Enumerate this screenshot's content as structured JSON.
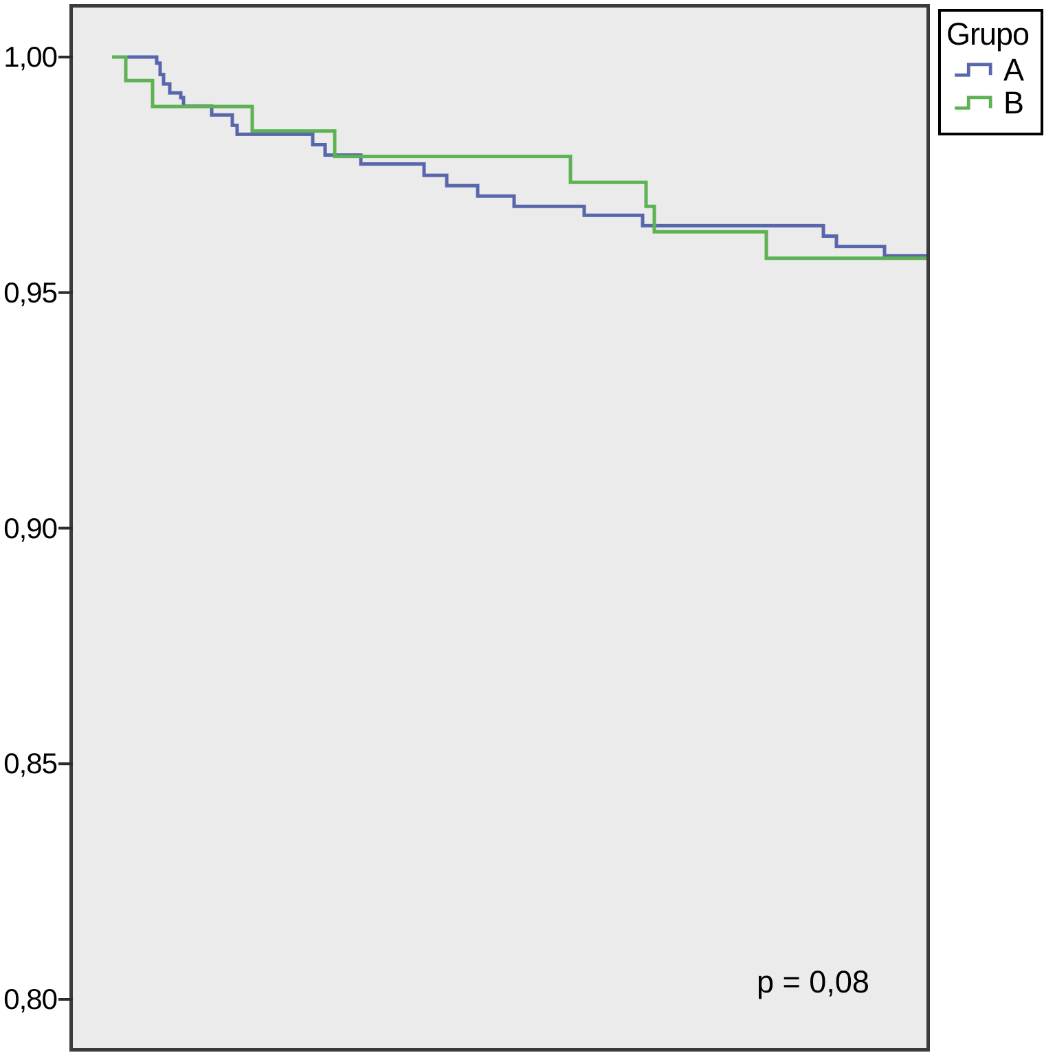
{
  "figure": {
    "p_value_label": "p = 0,08"
  },
  "legend": {
    "title": "Grupo",
    "entries": [
      {
        "label": "A"
      },
      {
        "label": "B"
      }
    ]
  },
  "colors": {
    "series_a": "#5866ac",
    "series_b": "#5db253",
    "plot_background": "#ebebeb",
    "frame": "#3b3b3b",
    "tick": "#2d2d2d"
  },
  "chart_data": {
    "type": "line",
    "subtype": "kaplan-meier-step",
    "title": "",
    "xlabel": "",
    "ylabel": "",
    "annotation": "p = 0,08",
    "grid": false,
    "legend_position": "top-right-outside",
    "x_axis": {
      "ticks": [],
      "note": "no x-axis tick marks or labels visible; step x positions recorded as pixel offsets in the source image"
    },
    "y_axis": {
      "ylim": [
        0.8,
        1.0
      ],
      "ticks": [
        {
          "value": 1.0,
          "label": "1,00"
        },
        {
          "value": 0.95,
          "label": "0,95"
        },
        {
          "value": 0.9,
          "label": "0,90"
        },
        {
          "value": 0.85,
          "label": "0,85"
        },
        {
          "value": 0.8,
          "label": "0,80"
        }
      ]
    },
    "series": [
      {
        "name": "A",
        "color": "#5866ac",
        "x_end": 1348,
        "steps": [
          [
            165,
            1.0
          ],
          [
            228,
            0.9987
          ],
          [
            233,
            0.9963
          ],
          [
            238,
            0.9943
          ],
          [
            247,
            0.9924
          ],
          [
            263,
            0.9914
          ],
          [
            267,
            0.9896
          ],
          [
            308,
            0.9877
          ],
          [
            338,
            0.9855
          ],
          [
            345,
            0.9836
          ],
          [
            455,
            0.9814
          ],
          [
            473,
            0.9792
          ],
          [
            525,
            0.9773
          ],
          [
            617,
            0.9749
          ],
          [
            650,
            0.9727
          ],
          [
            695,
            0.9705
          ],
          [
            748,
            0.9683
          ],
          [
            850,
            0.9664
          ],
          [
            935,
            0.9642
          ],
          [
            1198,
            0.962
          ],
          [
            1217,
            0.9598
          ],
          [
            1287,
            0.9578
          ]
        ]
      },
      {
        "name": "B",
        "color": "#5db253",
        "x_end": 1348,
        "steps": [
          [
            163,
            1.0
          ],
          [
            183,
            0.995
          ],
          [
            222,
            0.9895
          ],
          [
            367,
            0.9843
          ],
          [
            487,
            0.9789
          ],
          [
            830,
            0.9734
          ],
          [
            940,
            0.9683
          ],
          [
            952,
            0.9629
          ],
          [
            1115,
            0.9573
          ]
        ]
      }
    ]
  }
}
